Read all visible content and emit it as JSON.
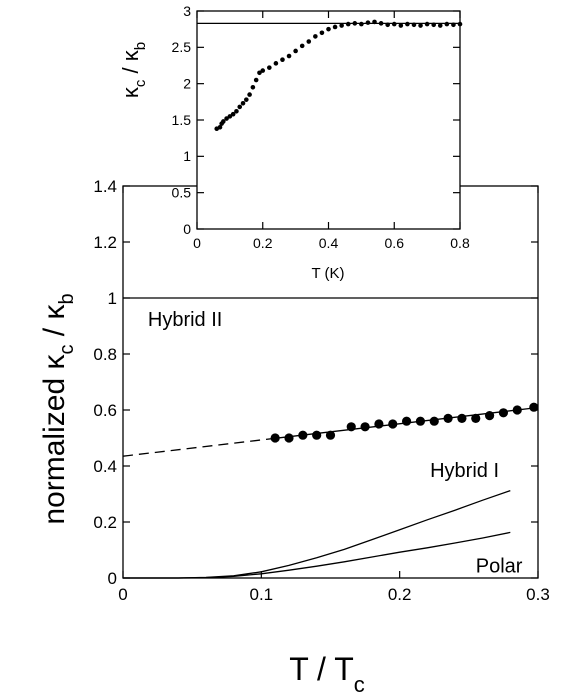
{
  "chart_data": [
    {
      "id": "main",
      "type": "line",
      "title": "",
      "xlabel": "T / T",
      "xlabel_sub": "c",
      "ylabel": "normalized κ",
      "ylabel_sub1": "c",
      "ylabel_mid": " / κ",
      "ylabel_sub2": "b",
      "xlim": [
        0,
        0.3
      ],
      "ylim": [
        0,
        1.4
      ],
      "xticks": [
        0,
        0.1,
        0.2,
        0.3
      ],
      "xtick_labels": [
        "0",
        "0.1",
        "0.2",
        "0.3"
      ],
      "yticks": [
        0,
        0.2,
        0.4,
        0.6,
        0.8,
        1.0,
        1.2,
        1.4
      ],
      "ytick_labels": [
        "0",
        "0.2",
        "0.4",
        "0.6",
        "0.8",
        "1",
        "1.2",
        "1.4"
      ],
      "hline": 1.0,
      "series": [
        {
          "style": "markers",
          "x": [
            0.11,
            0.12,
            0.13,
            0.14,
            0.15,
            0.165,
            0.175,
            0.185,
            0.195,
            0.205,
            0.215,
            0.225,
            0.235,
            0.245,
            0.255,
            0.265,
            0.275,
            0.285,
            0.297
          ],
          "y": [
            0.5,
            0.5,
            0.51,
            0.51,
            0.51,
            0.54,
            0.54,
            0.55,
            0.55,
            0.56,
            0.56,
            0.56,
            0.57,
            0.57,
            0.57,
            0.58,
            0.59,
            0.6,
            0.61
          ]
        },
        {
          "style": "solid",
          "x": [
            0.11,
            0.297
          ],
          "y": [
            0.499,
            0.607
          ]
        },
        {
          "style": "dashed",
          "x": [
            0.0,
            0.11
          ],
          "y": [
            0.435,
            0.499
          ]
        },
        {
          "style": "solid",
          "x": [
            0.0,
            0.04,
            0.06,
            0.08,
            0.1,
            0.12,
            0.14,
            0.16,
            0.18,
            0.2,
            0.22,
            0.24,
            0.26,
            0.28
          ],
          "y": [
            0.0,
            0.0,
            0.002,
            0.008,
            0.022,
            0.045,
            0.072,
            0.102,
            0.137,
            0.172,
            0.208,
            0.242,
            0.278,
            0.312
          ]
        },
        {
          "style": "solid",
          "x": [
            0.0,
            0.04,
            0.06,
            0.08,
            0.1,
            0.12,
            0.14,
            0.16,
            0.18,
            0.2,
            0.22,
            0.24,
            0.26,
            0.28
          ],
          "y": [
            0.0,
            0.0,
            0.001,
            0.006,
            0.015,
            0.028,
            0.042,
            0.058,
            0.075,
            0.092,
            0.108,
            0.125,
            0.143,
            0.163
          ]
        }
      ],
      "annotations": [
        {
          "text": "Hybrid  II",
          "x": 0.018,
          "y": 0.9
        },
        {
          "text": "Hybrid  I",
          "x": 0.222,
          "y": 0.36
        },
        {
          "text": "Polar",
          "x": 0.255,
          "y": 0.02
        }
      ]
    },
    {
      "id": "inset",
      "type": "scatter",
      "title": "",
      "xlabel": "T (K)",
      "ylabel": "κ",
      "ylabel_sub1": "c",
      "ylabel_mid": " / κ",
      "ylabel_sub2": "b",
      "xlim": [
        0,
        0.8
      ],
      "ylim": [
        0,
        3
      ],
      "xticks": [
        0,
        0.2,
        0.4,
        0.6,
        0.8
      ],
      "xtick_labels": [
        "0",
        "0.2",
        "0.4",
        "0.6",
        "0.8"
      ],
      "yticks": [
        0,
        0.5,
        1,
        1.5,
        2,
        2.5,
        3
      ],
      "ytick_labels": [
        "0",
        "0.5",
        "1",
        "1.5",
        "2",
        "2.5",
        "3"
      ],
      "hline": 2.83,
      "series": [
        {
          "style": "markers",
          "x": [
            0.06,
            0.07,
            0.075,
            0.08,
            0.09,
            0.1,
            0.11,
            0.12,
            0.13,
            0.14,
            0.15,
            0.16,
            0.17,
            0.18,
            0.19,
            0.2,
            0.22,
            0.24,
            0.26,
            0.28,
            0.3,
            0.32,
            0.34,
            0.36,
            0.38,
            0.4,
            0.42,
            0.44,
            0.46,
            0.48,
            0.5,
            0.52,
            0.54,
            0.56,
            0.58,
            0.6,
            0.62,
            0.64,
            0.66,
            0.68,
            0.7,
            0.72,
            0.74,
            0.76,
            0.78,
            0.8
          ],
          "y": [
            1.38,
            1.4,
            1.45,
            1.48,
            1.52,
            1.55,
            1.58,
            1.62,
            1.68,
            1.73,
            1.78,
            1.85,
            1.95,
            2.05,
            2.15,
            2.18,
            2.22,
            2.28,
            2.33,
            2.38,
            2.45,
            2.52,
            2.58,
            2.65,
            2.7,
            2.75,
            2.78,
            2.8,
            2.82,
            2.83,
            2.82,
            2.84,
            2.85,
            2.83,
            2.81,
            2.82,
            2.8,
            2.82,
            2.81,
            2.8,
            2.82,
            2.81,
            2.8,
            2.82,
            2.81,
            2.82
          ]
        }
      ],
      "annotations": []
    }
  ]
}
